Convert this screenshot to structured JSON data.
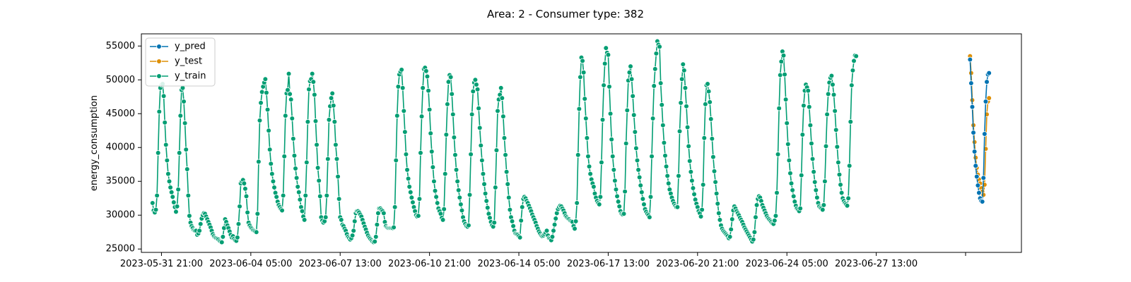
{
  "chart_data": {
    "type": "line",
    "title": "Area: 2 - Consumer type: 382",
    "xlabel": "",
    "ylabel": "energy_consumption",
    "x_start": "2023-05-31 13:00",
    "x_step_hours": 1,
    "xlim": [
      "2023-05-31 03:00",
      "2023-07-02 23:00"
    ],
    "ylim": [
      24500,
      56800
    ],
    "x_ticks": [
      "2023-05-31 21:00",
      "2023-06-04 05:00",
      "2023-06-07 13:00",
      "2023-06-10 21:00",
      "2023-06-14 05:00",
      "2023-06-17 13:00",
      "2023-06-20 21:00",
      "2023-06-24 05:00",
      "2023-06-27 13:00",
      ""
    ],
    "y_ticks": [
      "25000",
      "30000",
      "35000",
      "40000",
      "45000",
      "50000",
      "55000"
    ],
    "grid": false,
    "legend_position": "top-left",
    "colors": {
      "y_pred": "#0173b2",
      "y_test": "#de8f05",
      "y_train": "#029e73"
    },
    "series": [
      {
        "name": "y_pred",
        "x_offset_hours": 732,
        "values": [
          53000,
          49500,
          46000,
          42200,
          39400,
          37300,
          35700,
          34400,
          33300,
          32500,
          32100,
          32000,
          35500,
          42000,
          46800,
          49700,
          50800,
          51000
        ]
      },
      {
        "name": "y_test",
        "x_offset_hours": 732,
        "values": [
          53500,
          51000,
          47000,
          43300,
          40800,
          38500,
          37000,
          36000,
          35300,
          34700,
          34000,
          33500,
          33000,
          34500,
          39800,
          44900,
          46800,
          47300
        ]
      },
      {
        "name": "y_train",
        "x_offset_hours": 0,
        "values": [
          31800,
          30700,
          30400,
          30800,
          32900,
          39200,
          45300,
          48800,
          49300,
          49400,
          47600,
          43700,
          40400,
          38100,
          36100,
          35000,
          34100,
          33400,
          32700,
          31900,
          31200,
          30500,
          31300,
          33800,
          39200,
          44700,
          48500,
          48800,
          46800,
          43600,
          39700,
          36800,
          32900,
          29900,
          28900,
          28400,
          28100,
          27800,
          27700,
          27700,
          27100,
          27300,
          27700,
          28700,
          29500,
          30000,
          30300,
          30200,
          29800,
          29400,
          29000,
          28600,
          28200,
          27700,
          27200,
          26900,
          26700,
          26600,
          26500,
          26400,
          26200,
          26100,
          26000,
          26800,
          28100,
          29400,
          29000,
          28500,
          28100,
          27600,
          27100,
          26700,
          26900,
          26500,
          26300,
          26200,
          26700,
          28700,
          31300,
          34700,
          35000,
          35200,
          34700,
          33900,
          32800,
          30400,
          28900,
          28500,
          28200,
          28000,
          27800,
          27700,
          27600,
          27500,
          30200,
          37900,
          44000,
          46600,
          48200,
          49000,
          49600,
          50100,
          48100,
          45600,
          42500,
          39700,
          37600,
          36100,
          35000,
          34100,
          33300,
          32700,
          32000,
          31500,
          31200,
          30900,
          30700,
          32900,
          38700,
          44700,
          48000,
          48500,
          50900,
          47900,
          47100,
          44300,
          41300,
          38800,
          36900,
          35500,
          34200,
          33400,
          32300,
          31200,
          30600,
          29800,
          29300,
          32900,
          37800,
          43800,
          48600,
          49800,
          50100,
          50900,
          49700,
          47800,
          43900,
          40400,
          37000,
          35100,
          32800,
          29700,
          29200,
          28900,
          29100,
          29700,
          32900,
          38300,
          44100,
          46100,
          47300,
          48000,
          46200,
          43800,
          40400,
          38300,
          35700,
          32400,
          29700,
          29300,
          28600,
          28400,
          28000,
          27700,
          27200,
          26800,
          26600,
          26400,
          26600,
          27000,
          27700,
          29100,
          30300,
          30600,
          30600,
          30400,
          30100,
          29800,
          29300,
          28800,
          28300,
          27900,
          27400,
          27000,
          26700,
          26500,
          26300,
          26100,
          26000,
          26100,
          26800,
          28600,
          30300,
          31000,
          31000,
          30800,
          30600,
          30300,
          29000,
          28400,
          28200,
          28100,
          28100,
          28100,
          28100,
          28100,
          28200,
          31200,
          38100,
          44700,
          49000,
          50800,
          51200,
          51500,
          48800,
          45400,
          42300,
          39000,
          36700,
          35400,
          34200,
          33400,
          32600,
          31900,
          31200,
          30600,
          30000,
          29800,
          29900,
          32400,
          39200,
          44600,
          48800,
          51600,
          51800,
          51300,
          50500,
          48400,
          45600,
          42100,
          39400,
          37100,
          35000,
          33600,
          32700,
          31800,
          31000,
          30600,
          30200,
          29600,
          29300,
          30900,
          36100,
          41900,
          46400,
          49700,
          50700,
          50400,
          47900,
          44900,
          41500,
          38900,
          36700,
          35000,
          33700,
          32600,
          31600,
          30700,
          29700,
          29100,
          28700,
          28400,
          28300,
          28500,
          33000,
          39000,
          44900,
          48300,
          49600,
          50000,
          49300,
          48600,
          45800,
          42900,
          40300,
          38100,
          36100,
          34600,
          33200,
          32100,
          31100,
          30200,
          29600,
          29000,
          28500,
          28300,
          28900,
          34100,
          39600,
          45400,
          47100,
          47800,
          48800,
          47300,
          44600,
          41400,
          38900,
          36400,
          34600,
          32600,
          30800,
          29700,
          29100,
          28400,
          27700,
          27300,
          27200,
          27100,
          26900,
          26700,
          29200,
          31200,
          32400,
          32700,
          32500,
          32100,
          31800,
          31400,
          31000,
          30600,
          30100,
          29700,
          29300,
          28900,
          28400,
          28000,
          27600,
          27300,
          27000,
          26900,
          27000,
          27200,
          27400,
          27700,
          27000,
          26600,
          26500,
          26300,
          26800,
          27700,
          28600,
          29500,
          30300,
          30900,
          31200,
          31400,
          31300,
          31000,
          30700,
          30300,
          29900,
          29700,
          29500,
          29400,
          29200,
          29100,
          29000,
          28400,
          28000,
          29100,
          31800,
          38900,
          45700,
          50400,
          53300,
          52800,
          51100,
          47200,
          44300,
          41400,
          38700,
          37200,
          36100,
          35300,
          34700,
          34200,
          33200,
          32600,
          32100,
          31800,
          31600,
          32700,
          37800,
          44100,
          49200,
          52400,
          54700,
          54000,
          53700,
          49000,
          45000,
          41200,
          38700,
          36700,
          35100,
          33800,
          32800,
          32000,
          31300,
          30600,
          30200,
          30100,
          30200,
          33500,
          40600,
          45500,
          49900,
          51100,
          52000,
          50100,
          47600,
          44800,
          42300,
          39900,
          38100,
          36700,
          35600,
          34400,
          33400,
          32400,
          31600,
          30900,
          30500,
          30200,
          30000,
          29700,
          32700,
          38700,
          44300,
          49100,
          51600,
          53900,
          55700,
          55200,
          54900,
          49500,
          46300,
          43300,
          40700,
          38800,
          37200,
          35800,
          34700,
          33800,
          33200,
          32600,
          32100,
          31700,
          31400,
          31200,
          31200,
          35800,
          42400,
          46600,
          50100,
          52300,
          51400,
          48800,
          46100,
          43000,
          40200,
          38000,
          36400,
          35100,
          34000,
          33100,
          32300,
          31700,
          31200,
          30600,
          30300,
          29800,
          30800,
          34500,
          41400,
          46400,
          49200,
          49400,
          48300,
          46700,
          44200,
          41300,
          38600,
          36500,
          34900,
          33200,
          31700,
          30300,
          29300,
          28500,
          28000,
          27700,
          27500,
          27300,
          27100,
          26900,
          26600,
          26800,
          27900,
          29400,
          30700,
          31300,
          31000,
          30600,
          30300,
          30000,
          29600,
          29300,
          29000,
          28600,
          28200,
          27900,
          27600,
          27300,
          27000,
          26700,
          26400,
          26100,
          26400,
          27500,
          29700,
          31500,
          32400,
          32800,
          32600,
          32100,
          31500,
          31100,
          30700,
          30300,
          29900,
          29600,
          29400,
          29200,
          29000,
          28800,
          28700,
          29200,
          29900,
          33300,
          39000,
          45800,
          50700,
          52700,
          54200,
          53600,
          50800,
          47100,
          43600,
          40500,
          38100,
          36200,
          34700,
          33700,
          32800,
          32000,
          31400,
          31000,
          30800,
          30600,
          31000,
          35900,
          41900,
          46200,
          48400,
          49300,
          48900,
          48400,
          46000,
          43300,
          40600,
          38300,
          36400,
          34900,
          33700,
          32600,
          31800,
          31300,
          31100,
          31000,
          30800,
          31500,
          35000,
          40200,
          44900,
          47900,
          49600,
          50300,
          50600,
          49300,
          47800,
          45400,
          42600,
          40100,
          37800,
          36000,
          34500,
          33300,
          32500,
          32100,
          31800,
          31600,
          31400,
          32500,
          37300,
          43800,
          49200,
          51400,
          52800,
          53600,
          53500
        ]
      }
    ]
  }
}
